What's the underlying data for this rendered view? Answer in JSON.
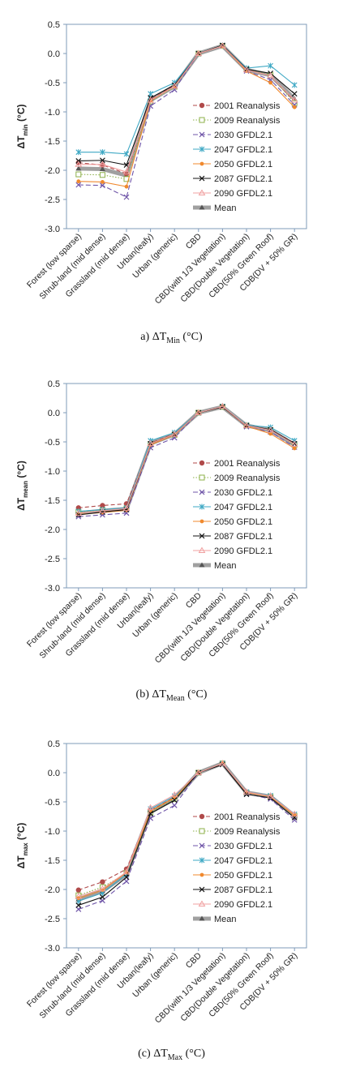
{
  "colors": {
    "axis": "#7f9bb8",
    "text": "#222222",
    "series": [
      "#b04a4a",
      "#8db04a",
      "#6f55a8",
      "#3ea8c4",
      "#f0892e",
      "#111111",
      "#f0a0a0"
    ],
    "mean": "#a0a0a0"
  },
  "chart_data": [
    {
      "type": "line",
      "caption": {
        "prefix": "a) ",
        "symbol": "ΔT",
        "sub": "Min",
        "unit": " (°C)"
      },
      "ylabel": {
        "symbol": "ΔT",
        "sub": "min",
        "unit": " (°C)"
      },
      "xlabel": "",
      "ylim": [
        -3.0,
        0.5
      ],
      "yticks": [
        "0.5",
        "0.0",
        "-0.5",
        "-1.0",
        "-1.5",
        "-2.0",
        "-2.5",
        "-3.0"
      ],
      "categories": [
        "Forest (low sparse)",
        "Shrub-land (mid dense)",
        "Grassland (mid dense)",
        "Urban(leafy)",
        "Urban (generic)",
        "CBD",
        "CBD(with 1/3 Vegetation)",
        "CBD(Double Vegetation)",
        "CBD(50% Green Roof)",
        "CDB(DV + 50% GR)"
      ],
      "legend_position": "right-middle",
      "series": [
        {
          "name": "2001 Reanalysis",
          "values": [
            -1.87,
            -1.91,
            -2.06,
            -0.79,
            -0.55,
            0.0,
            0.13,
            -0.28,
            -0.38,
            -0.82
          ]
        },
        {
          "name": "2009 Reanalysis",
          "values": [
            -2.07,
            -2.08,
            -2.15,
            -0.82,
            -0.57,
            0.0,
            0.13,
            -0.27,
            -0.37,
            -0.85
          ]
        },
        {
          "name": "2030 GFDL2.1",
          "values": [
            -2.25,
            -2.26,
            -2.46,
            -0.9,
            -0.62,
            0.0,
            0.13,
            -0.3,
            -0.45,
            -0.88
          ]
        },
        {
          "name": "2047 GFDL2.1",
          "values": [
            -1.69,
            -1.69,
            -1.72,
            -0.69,
            -0.5,
            0.0,
            0.14,
            -0.25,
            -0.21,
            -0.54
          ]
        },
        {
          "name": "2050 GFDL2.1",
          "values": [
            -2.19,
            -2.2,
            -2.28,
            -0.81,
            -0.56,
            0.0,
            0.13,
            -0.3,
            -0.5,
            -0.92
          ]
        },
        {
          "name": "2087 GFDL2.1",
          "values": [
            -1.84,
            -1.83,
            -1.91,
            -0.76,
            -0.54,
            0.0,
            0.14,
            -0.27,
            -0.34,
            -0.69
          ]
        },
        {
          "name": "2090 GFDL2.1",
          "values": [
            -1.9,
            -1.9,
            -2.03,
            -0.8,
            -0.56,
            0.0,
            0.13,
            -0.28,
            -0.38,
            -0.8
          ]
        },
        {
          "name": "Mean",
          "values": [
            -1.97,
            -1.98,
            -2.09,
            -0.8,
            -0.56,
            0.0,
            0.13,
            -0.28,
            -0.37,
            -0.78
          ]
        }
      ]
    },
    {
      "type": "line",
      "caption": {
        "prefix": "(b) ",
        "symbol": "ΔT",
        "sub": "Mean",
        "unit": " (°C)"
      },
      "ylabel": {
        "symbol": "ΔT",
        "sub": "mean",
        "unit": " (°C)"
      },
      "xlabel": "",
      "ylim": [
        -3.0,
        0.5
      ],
      "yticks": [
        "0.5",
        "0.0",
        "-0.5",
        "-1.0",
        "-1.5",
        "-2.0",
        "-2.5",
        "-3.0"
      ],
      "categories": [
        "Forest (low sparse)",
        "Shrub-land (mid dense)",
        "Grassland (mid dense)",
        "Urban(leafy)",
        "Urban (generic)",
        "CBD",
        "CBD(with 1/3 Vegetation)",
        "CBD(Double Vegetation)",
        "CBD(50% Green Roof)",
        "CDB(DV + 50% GR)"
      ],
      "legend_position": "right-middle",
      "series": [
        {
          "name": "2001 Reanalysis",
          "values": [
            -1.63,
            -1.59,
            -1.56,
            -0.52,
            -0.36,
            0.0,
            0.1,
            -0.22,
            -0.29,
            -0.52
          ]
        },
        {
          "name": "2009 Reanalysis",
          "values": [
            -1.7,
            -1.67,
            -1.64,
            -0.54,
            -0.38,
            0.0,
            0.1,
            -0.22,
            -0.3,
            -0.55
          ]
        },
        {
          "name": "2030 GFDL2.1",
          "values": [
            -1.78,
            -1.75,
            -1.72,
            -0.6,
            -0.43,
            0.0,
            0.1,
            -0.24,
            -0.33,
            -0.59
          ]
        },
        {
          "name": "2047 GFDL2.1",
          "values": [
            -1.69,
            -1.66,
            -1.63,
            -0.48,
            -0.34,
            0.0,
            0.11,
            -0.21,
            -0.25,
            -0.48
          ]
        },
        {
          "name": "2050 GFDL2.1",
          "values": [
            -1.74,
            -1.71,
            -1.67,
            -0.55,
            -0.38,
            0.0,
            0.1,
            -0.23,
            -0.36,
            -0.61
          ]
        },
        {
          "name": "2087 GFDL2.1",
          "values": [
            -1.75,
            -1.7,
            -1.66,
            -0.53,
            -0.37,
            0.0,
            0.1,
            -0.22,
            -0.29,
            -0.53
          ]
        },
        {
          "name": "2090 GFDL2.1",
          "values": [
            -1.72,
            -1.68,
            -1.64,
            -0.53,
            -0.37,
            0.0,
            0.11,
            -0.22,
            -0.3,
            -0.54
          ]
        },
        {
          "name": "Mean",
          "values": [
            -1.72,
            -1.68,
            -1.65,
            -0.53,
            -0.37,
            0.0,
            0.1,
            -0.22,
            -0.3,
            -0.55
          ]
        }
      ]
    },
    {
      "type": "line",
      "caption": {
        "prefix": "(c) ",
        "symbol": "ΔT",
        "sub": "Max",
        "unit": " (°C)"
      },
      "ylabel": {
        "symbol": "ΔT",
        "sub": "max",
        "unit": " (°C)"
      },
      "xlabel": "",
      "ylim": [
        -3.0,
        0.5
      ],
      "yticks": [
        "0.5",
        "0.0",
        "-0.5",
        "-1.0",
        "-1.5",
        "-2.0",
        "-2.5",
        "-3.0"
      ],
      "categories": [
        "Forest (low sparse)",
        "Shrub-land (mid dense)",
        "Grassland (mid dense)",
        "Urban(leafy)",
        "Urban (generic)",
        "CBD",
        "CBD(with 1/3 Vegetation)",
        "CBD(Double Vegetation)",
        "CBD(50% Green Roof)",
        "CDB(DV + 50% GR)"
      ],
      "legend_position": "right-middle",
      "series": [
        {
          "name": "2001 Reanalysis",
          "values": [
            -2.01,
            -1.87,
            -1.65,
            -0.65,
            -0.42,
            0.0,
            0.16,
            -0.33,
            -0.4,
            -0.72
          ]
        },
        {
          "name": "2009 Reanalysis",
          "values": [
            -2.1,
            -1.96,
            -1.72,
            -0.68,
            -0.45,
            0.0,
            0.16,
            -0.34,
            -0.41,
            -0.74
          ]
        },
        {
          "name": "2030 GFDL2.1",
          "values": [
            -2.34,
            -2.19,
            -1.86,
            -0.78,
            -0.56,
            0.0,
            0.15,
            -0.36,
            -0.45,
            -0.81
          ]
        },
        {
          "name": "2047 GFDL2.1",
          "values": [
            -2.2,
            -2.06,
            -1.74,
            -0.62,
            -0.4,
            0.0,
            0.16,
            -0.33,
            -0.39,
            -0.71
          ]
        },
        {
          "name": "2050 GFDL2.1",
          "values": [
            -2.15,
            -2.01,
            -1.71,
            -0.66,
            -0.43,
            0.0,
            0.16,
            -0.34,
            -0.41,
            -0.73
          ]
        },
        {
          "name": "2087 GFDL2.1",
          "values": [
            -2.27,
            -2.13,
            -1.79,
            -0.7,
            -0.47,
            0.0,
            0.14,
            -0.37,
            -0.43,
            -0.77
          ]
        },
        {
          "name": "2090 GFDL2.1",
          "values": [
            -2.12,
            -1.99,
            -1.7,
            -0.6,
            -0.38,
            0.0,
            0.16,
            -0.33,
            -0.4,
            -0.71
          ]
        },
        {
          "name": "Mean",
          "values": [
            -2.17,
            -2.03,
            -1.74,
            -0.67,
            -0.45,
            0.0,
            0.16,
            -0.34,
            -0.41,
            -0.74
          ]
        }
      ]
    }
  ]
}
